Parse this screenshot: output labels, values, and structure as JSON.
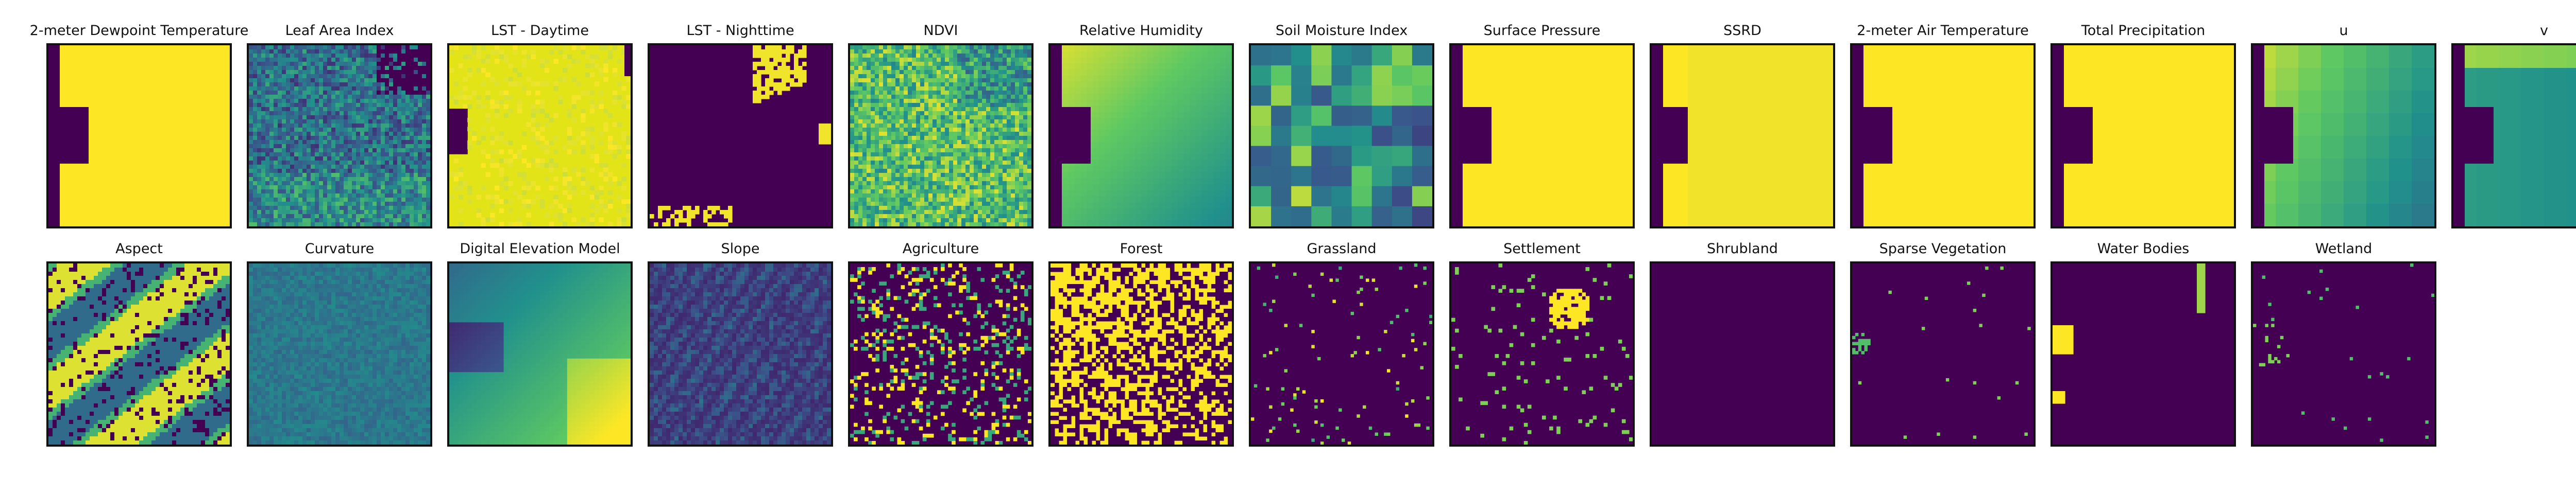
{
  "figure": {
    "rows": [
      [
        {
          "title": "2-meter Dewpoint Temperature",
          "style": "mask_left"
        },
        {
          "title": "Leaf Area Index",
          "style": "lai"
        },
        {
          "title": "LST - Daytime",
          "style": "lst_day"
        },
        {
          "title": "LST - Nighttime",
          "style": "lst_night"
        },
        {
          "title": "NDVI",
          "style": "ndvi"
        },
        {
          "title": "Relative Humidity",
          "style": "humidity"
        },
        {
          "title": "Soil Moisture Index",
          "style": "soil_blocks"
        },
        {
          "title": "Surface Pressure",
          "style": "mask_left"
        },
        {
          "title": "SSRD",
          "style": "ssrd"
        },
        {
          "title": "2-meter Air Temperature",
          "style": "mask_left"
        },
        {
          "title": "Total Precipitation",
          "style": "mask_left"
        },
        {
          "title": "u",
          "style": "wind_u"
        },
        {
          "title": "v",
          "style": "wind_v"
        }
      ],
      [
        {
          "title": "Aspect",
          "style": "aspect"
        },
        {
          "title": "Curvature",
          "style": "curvature"
        },
        {
          "title": "Digital Elevation Model",
          "style": "dem"
        },
        {
          "title": "Slope",
          "style": "slope"
        },
        {
          "title": "Agriculture",
          "style": "agri"
        },
        {
          "title": "Forest",
          "style": "forest"
        },
        {
          "title": "Grassland",
          "style": "sparse_dots"
        },
        {
          "title": "Settlement",
          "style": "settlement"
        },
        {
          "title": "Shrubland",
          "style": "empty"
        },
        {
          "title": "Sparse Vegetation",
          "style": "sparse_veg"
        },
        {
          "title": "Water Bodies",
          "style": "water"
        },
        {
          "title": "Wetland",
          "style": "wetland"
        }
      ]
    ],
    "colormap": [
      "#440154",
      "#3b528b",
      "#21918c",
      "#5ec962",
      "#fde725"
    ]
  }
}
